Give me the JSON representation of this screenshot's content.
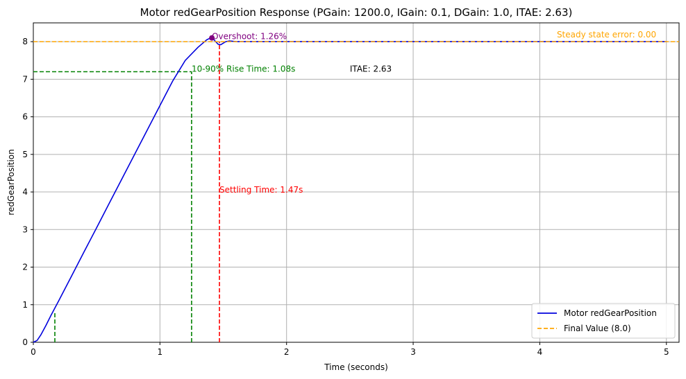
{
  "chart_data": {
    "type": "line",
    "title": "Motor redGearPosition Response (PGain: 1200.0, IGain: 0.1, DGain: 1.0, ITAE: 2.63)",
    "xlabel": "Time (seconds)",
    "ylabel": "redGearPosition",
    "xlim": [
      0,
      5.1
    ],
    "ylim": [
      0,
      8.5
    ],
    "xticks": [
      0,
      1,
      2,
      3,
      4,
      5
    ],
    "yticks": [
      0,
      1,
      2,
      3,
      4,
      5,
      6,
      7,
      8
    ],
    "grid": true,
    "legend_position": "bottom-right",
    "series": [
      {
        "name": "Motor redGearPosition",
        "color": "#0000dd",
        "x": [
          0,
          0.03,
          0.06,
          0.1,
          0.14,
          0.2,
          0.3,
          0.4,
          0.5,
          0.6,
          0.7,
          0.8,
          0.9,
          1.0,
          1.1,
          1.2,
          1.3,
          1.37,
          1.4,
          1.42,
          1.44,
          1.46,
          1.48,
          1.5,
          1.52,
          1.55,
          1.6,
          1.7,
          2.0,
          3.0,
          4.0,
          5.0
        ],
        "y": [
          0,
          0.05,
          0.2,
          0.45,
          0.72,
          1.1,
          1.75,
          2.4,
          3.05,
          3.7,
          4.35,
          5.0,
          5.65,
          6.3,
          6.95,
          7.5,
          7.85,
          8.05,
          8.1,
          8.08,
          8.0,
          7.93,
          7.92,
          7.96,
          8.0,
          8.02,
          8.0,
          8.0,
          8.0,
          8.0,
          8.0,
          8.0
        ]
      },
      {
        "name": "Final Value (8.0)",
        "color": "#ffa500",
        "style": "dashed",
        "x": [
          0,
          5.1
        ],
        "y": [
          8.0,
          8.0
        ]
      }
    ],
    "final_value": 8.0,
    "markers": {
      "rise_10_time": 0.17,
      "rise_10_value": 0.8,
      "rise_90_time": 1.25,
      "rise_90_value": 7.2,
      "settling_time": 1.47,
      "peak_time": 1.41,
      "peak_value": 8.1
    },
    "annotations": {
      "overshoot": "Overshoot: 1.26%",
      "rise_time": "10-90% Rise Time: 1.08s",
      "itae": "ITAE: 2.63",
      "settling": "Settling Time: 1.47s",
      "steady_state": "Steady state error: 0.00"
    },
    "colors": {
      "response": "#0000dd",
      "final": "#ffa500",
      "rise": "#008000",
      "settling": "#ff0000",
      "overshoot": "#800080",
      "grid": "#b0b0b0"
    }
  }
}
